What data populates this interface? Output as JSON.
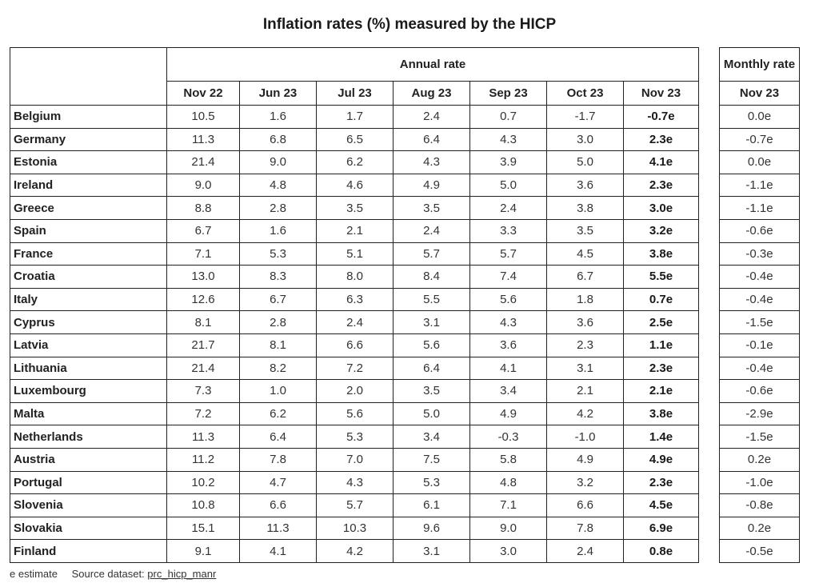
{
  "title": "Inflation rates (%) measured by the HICP",
  "annual_header": "Annual rate",
  "monthly_header": "Monthly rate",
  "annual_columns": [
    "Nov 22",
    "Jun 23",
    "Jul 23",
    "Aug 23",
    "Sep 23",
    "Oct 23",
    "Nov 23"
  ],
  "monthly_column": "Nov 23",
  "rows": [
    {
      "country": "Belgium",
      "annual": [
        "10.5",
        "1.6",
        "1.7",
        "2.4",
        "0.7",
        "-1.7",
        "-0.7e"
      ],
      "monthly": "0.0e"
    },
    {
      "country": "Germany",
      "annual": [
        "11.3",
        "6.8",
        "6.5",
        "6.4",
        "4.3",
        "3.0",
        "2.3e"
      ],
      "monthly": "-0.7e"
    },
    {
      "country": "Estonia",
      "annual": [
        "21.4",
        "9.0",
        "6.2",
        "4.3",
        "3.9",
        "5.0",
        "4.1e"
      ],
      "monthly": "0.0e"
    },
    {
      "country": "Ireland",
      "annual": [
        "9.0",
        "4.8",
        "4.6",
        "4.9",
        "5.0",
        "3.6",
        "2.3e"
      ],
      "monthly": "-1.1e"
    },
    {
      "country": "Greece",
      "annual": [
        "8.8",
        "2.8",
        "3.5",
        "3.5",
        "2.4",
        "3.8",
        "3.0e"
      ],
      "monthly": "-1.1e"
    },
    {
      "country": "Spain",
      "annual": [
        "6.7",
        "1.6",
        "2.1",
        "2.4",
        "3.3",
        "3.5",
        "3.2e"
      ],
      "monthly": "-0.6e"
    },
    {
      "country": "France",
      "annual": [
        "7.1",
        "5.3",
        "5.1",
        "5.7",
        "5.7",
        "4.5",
        "3.8e"
      ],
      "monthly": "-0.3e"
    },
    {
      "country": "Croatia",
      "annual": [
        "13.0",
        "8.3",
        "8.0",
        "8.4",
        "7.4",
        "6.7",
        "5.5e"
      ],
      "monthly": "-0.4e"
    },
    {
      "country": "Italy",
      "annual": [
        "12.6",
        "6.7",
        "6.3",
        "5.5",
        "5.6",
        "1.8",
        "0.7e"
      ],
      "monthly": "-0.4e"
    },
    {
      "country": "Cyprus",
      "annual": [
        "8.1",
        "2.8",
        "2.4",
        "3.1",
        "4.3",
        "3.6",
        "2.5e"
      ],
      "monthly": "-1.5e"
    },
    {
      "country": "Latvia",
      "annual": [
        "21.7",
        "8.1",
        "6.6",
        "5.6",
        "3.6",
        "2.3",
        "1.1e"
      ],
      "monthly": "-0.1e"
    },
    {
      "country": "Lithuania",
      "annual": [
        "21.4",
        "8.2",
        "7.2",
        "6.4",
        "4.1",
        "3.1",
        "2.3e"
      ],
      "monthly": "-0.4e"
    },
    {
      "country": "Luxembourg",
      "annual": [
        "7.3",
        "1.0",
        "2.0",
        "3.5",
        "3.4",
        "2.1",
        "2.1e"
      ],
      "monthly": "-0.6e"
    },
    {
      "country": "Malta",
      "annual": [
        "7.2",
        "6.2",
        "5.6",
        "5.0",
        "4.9",
        "4.2",
        "3.8e"
      ],
      "monthly": "-2.9e"
    },
    {
      "country": "Netherlands",
      "annual": [
        "11.3",
        "6.4",
        "5.3",
        "3.4",
        "-0.3",
        "-1.0",
        "1.4e"
      ],
      "monthly": "-1.5e"
    },
    {
      "country": "Austria",
      "annual": [
        "11.2",
        "7.8",
        "7.0",
        "7.5",
        "5.8",
        "4.9",
        "4.9e"
      ],
      "monthly": "0.2e"
    },
    {
      "country": "Portugal",
      "annual": [
        "10.2",
        "4.7",
        "4.3",
        "5.3",
        "4.8",
        "3.2",
        "2.3e"
      ],
      "monthly": "-1.0e"
    },
    {
      "country": "Slovenia",
      "annual": [
        "10.8",
        "6.6",
        "5.7",
        "6.1",
        "7.1",
        "6.6",
        "4.5e"
      ],
      "monthly": "-0.8e"
    },
    {
      "country": "Slovakia",
      "annual": [
        "15.1",
        "11.3",
        "10.3",
        "9.6",
        "9.0",
        "7.8",
        "6.9e"
      ],
      "monthly": "0.2e"
    },
    {
      "country": "Finland",
      "annual": [
        "9.1",
        "4.1",
        "4.2",
        "3.1",
        "3.0",
        "2.4",
        "0.8e"
      ],
      "monthly": "-0.5e"
    }
  ],
  "footer": {
    "note": "e estimate",
    "source_label": "Source dataset:",
    "source_link": "prc_hicp_manr"
  }
}
